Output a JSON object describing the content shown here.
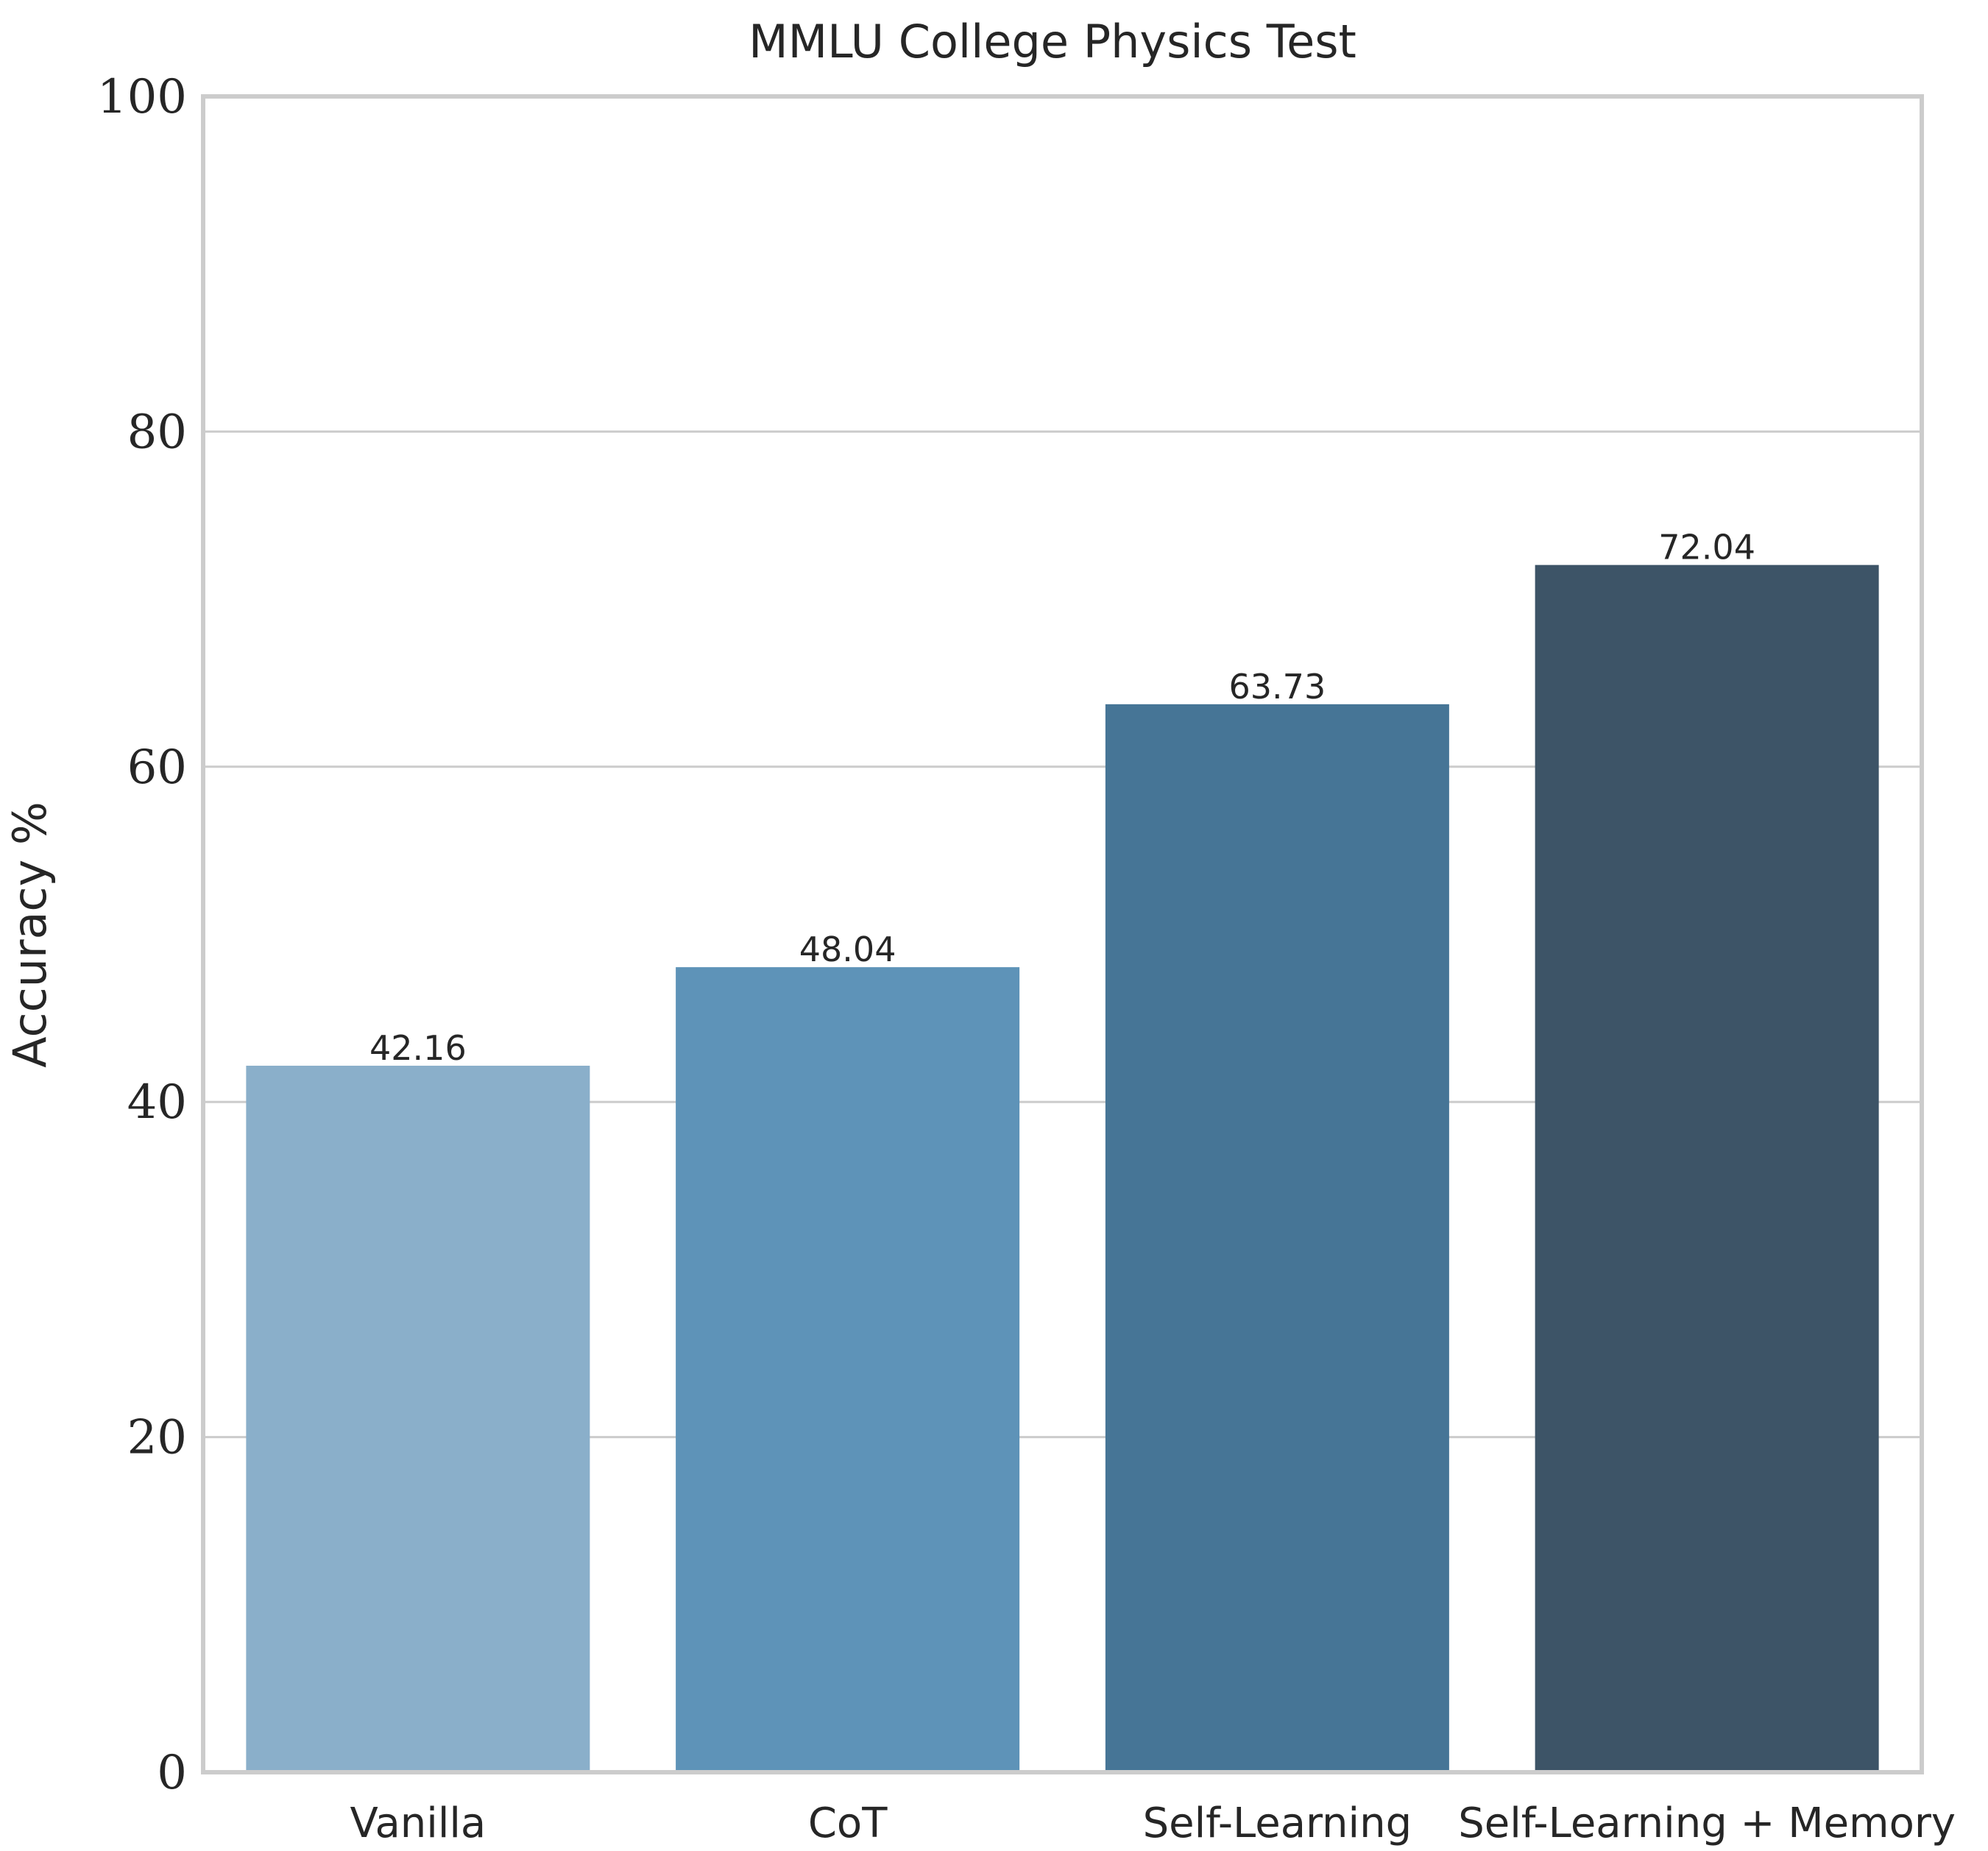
{
  "chart_data": {
    "type": "bar",
    "title": "MMLU College Physics Test",
    "xlabel": "",
    "ylabel": "Accuracy %",
    "ylim": [
      0,
      100
    ],
    "yticks": [
      "0",
      "20",
      "40",
      "60",
      "80",
      "100"
    ],
    "categories": [
      "Vanilla",
      "CoT",
      "Self-Learning",
      "Self-Learning + Memory"
    ],
    "values": [
      42.16,
      48.04,
      63.73,
      72.04
    ],
    "value_labels": [
      "42.16",
      "48.04",
      "63.73",
      "72.04"
    ],
    "colors": [
      "#8aafca",
      "#5e93b8",
      "#467596",
      "#3d5467"
    ],
    "grid": true,
    "legend": "none"
  }
}
